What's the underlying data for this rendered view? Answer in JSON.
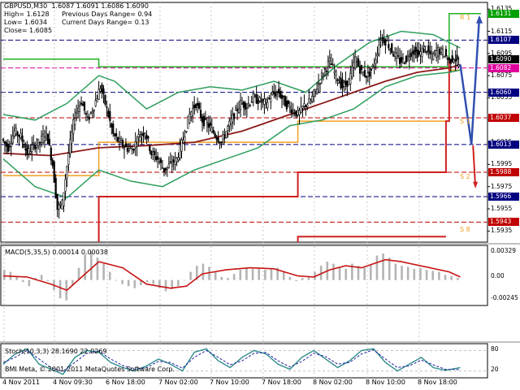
{
  "header": {
    "symbol_line": "GBPUSD,M30  1.6087 1.6091 1.6086 1.6090",
    "high": "High= 1.6128",
    "low": "Low= 1.6034",
    "close": "Close= 1.6085",
    "prev_range": "Previous Days Range= 0.94",
    "cur_range": "Current Days Range= 0.13"
  },
  "macd": {
    "label": "MACD(5,35,5) 0.00014 0.00038",
    "ticks": [
      "0.00329",
      "0.00",
      "-0.00245"
    ]
  },
  "stoch": {
    "label": "Stoch(10,3,3) 28.1690 22.0269",
    "ticks": [
      "80",
      "20"
    ]
  },
  "copyright": "BMI Meta, © 2001-2011 MetaQuotes Software Corp.",
  "price_ticks": [
    "1.6135",
    "1.6115",
    "1.6095",
    "1.6075",
    "1.6055",
    "1.6035",
    "1.6015",
    "1.5995",
    "1.5975",
    "1.5955",
    "1.5935"
  ],
  "price_labels": [
    {
      "text": "1.6131",
      "bg": "#00a000",
      "fg": "#ffffff",
      "price": 1.6131
    },
    {
      "text": "1.6107",
      "bg": "#000080",
      "fg": "#ffffff",
      "price": 1.6107
    },
    {
      "text": "1.6090",
      "bg": "#000000",
      "fg": "#ffffff",
      "price": 1.609
    },
    {
      "text": "1.6082",
      "bg": "#e0009c",
      "fg": "#ffffff",
      "price": 1.6082
    },
    {
      "text": "1.6060",
      "bg": "#000080",
      "fg": "#ffffff",
      "price": 1.606
    },
    {
      "text": "1.6037",
      "bg": "#c00000",
      "fg": "#ffffff",
      "price": 1.6037
    },
    {
      "text": "1.6013",
      "bg": "#000080",
      "fg": "#ffffff",
      "price": 1.6013
    },
    {
      "text": "1.5988",
      "bg": "#c00000",
      "fg": "#ffffff",
      "price": 1.5988
    },
    {
      "text": "1.5966",
      "bg": "#000080",
      "fg": "#ffffff",
      "price": 1.5966
    },
    {
      "text": "1.5943",
      "bg": "#c00000",
      "fg": "#ffffff",
      "price": 1.5943
    }
  ],
  "level_marks": [
    {
      "text": "R 1",
      "price": 1.6128,
      "x": 566,
      "color": "#f0a020"
    },
    {
      "text": "S 1",
      "price": 1.6034,
      "x": 566,
      "color": "#f0a020"
    },
    {
      "text": "S 2",
      "price": 1.5984,
      "x": 566,
      "color": "#f0a020"
    },
    {
      "text": "S 8",
      "price": 1.5937,
      "x": 566,
      "color": "#f0a020"
    }
  ],
  "x_labels": [
    {
      "text": "4 Nov 2011",
      "x": 3
    },
    {
      "text": "4 Nov 09:30",
      "x": 65
    },
    {
      "text": "6 Nov 18:00",
      "x": 130
    },
    {
      "text": "7 Nov 02:00",
      "x": 195
    },
    {
      "text": "7 Nov 10:00",
      "x": 258
    },
    {
      "text": "7 Nov 18:00",
      "x": 322
    },
    {
      "text": "8 Nov 02:00",
      "x": 385
    },
    {
      "text": "8 Nov 10:00",
      "x": 450
    },
    {
      "text": "8 Nov 18:00",
      "x": 514
    }
  ],
  "colors": {
    "candle": "#000000",
    "bb": "#2e9e5e",
    "ma": "#8b1a1a",
    "r1": "#20b020",
    "s1": "#f0a020",
    "s2": "#d02020",
    "proj": "#3050b0",
    "macd_hist": "#b4b4b4",
    "macd_sig": "#c81414",
    "stoch_main": "#2e8b8b",
    "stoch_sig": "#2020a0"
  },
  "chart_data": [
    {
      "type": "candlestick",
      "title": "GBPUSD,M30",
      "ylim": [
        1.5925,
        1.6141
      ],
      "indicators": [
        "Bollinger Bands",
        "Moving Average",
        "Pivot levels"
      ],
      "close_path": [
        [
          0,
          1.6018
        ],
        [
          8,
          1.601
        ],
        [
          16,
          1.6025
        ],
        [
          24,
          1.602
        ],
        [
          32,
          1.6005
        ],
        [
          40,
          1.6012
        ],
        [
          48,
          1.6015
        ],
        [
          56,
          1.6025
        ],
        [
          64,
          1.5995
        ],
        [
          70,
          1.5955
        ],
        [
          76,
          1.596
        ],
        [
          84,
          1.6005
        ],
        [
          92,
          1.604
        ],
        [
          100,
          1.6052
        ],
        [
          108,
          1.6035
        ],
        [
          116,
          1.6048
        ],
        [
          124,
          1.6065
        ],
        [
          132,
          1.6045
        ],
        [
          140,
          1.6022
        ],
        [
          148,
          1.6015
        ],
        [
          156,
          1.601
        ],
        [
          164,
          1.6008
        ],
        [
          172,
          1.602
        ],
        [
          180,
          1.6025
        ],
        [
          188,
          1.6005
        ],
        [
          196,
          1.6
        ],
        [
          204,
          1.599
        ],
        [
          212,
          1.5995
        ],
        [
          220,
          1.6
        ],
        [
          228,
          1.6018
        ],
        [
          236,
          1.604
        ],
        [
          244,
          1.605
        ],
        [
          252,
          1.6035
        ],
        [
          260,
          1.603
        ],
        [
          268,
          1.6022
        ],
        [
          276,
          1.6015
        ],
        [
          284,
          1.6028
        ],
        [
          292,
          1.604
        ],
        [
          300,
          1.605
        ],
        [
          308,
          1.6048
        ],
        [
          316,
          1.6055
        ],
        [
          324,
          1.6052
        ],
        [
          332,
          1.605
        ],
        [
          340,
          1.6058
        ],
        [
          348,
          1.606
        ],
        [
          356,
          1.605
        ],
        [
          364,
          1.6045
        ],
        [
          372,
          1.604
        ],
        [
          380,
          1.6048
        ],
        [
          388,
          1.6052
        ],
        [
          396,
          1.6065
        ],
        [
          404,
          1.6078
        ],
        [
          412,
          1.6088
        ],
        [
          420,
          1.6075
        ],
        [
          428,
          1.6065
        ],
        [
          436,
          1.607
        ],
        [
          444,
          1.609
        ],
        [
          452,
          1.6078
        ],
        [
          460,
          1.6075
        ],
        [
          468,
          1.6085
        ],
        [
          476,
          1.611
        ],
        [
          484,
          1.6105
        ],
        [
          492,
          1.6095
        ],
        [
          500,
          1.6088
        ],
        [
          508,
          1.609
        ],
        [
          516,
          1.6098
        ],
        [
          524,
          1.6094
        ],
        [
          532,
          1.61
        ],
        [
          540,
          1.6092
        ],
        [
          548,
          1.6098
        ],
        [
          556,
          1.6095
        ],
        [
          562,
          1.6088
        ],
        [
          568,
          1.6092
        ],
        [
          574,
          1.6085
        ]
      ],
      "ma_path": [
        [
          0,
          1.6005
        ],
        [
          60,
          1.6003
        ],
        [
          120,
          1.601
        ],
        [
          180,
          1.6012
        ],
        [
          240,
          1.6015
        ],
        [
          300,
          1.6025
        ],
        [
          360,
          1.604
        ],
        [
          400,
          1.605
        ],
        [
          440,
          1.606
        ],
        [
          480,
          1.607
        ],
        [
          520,
          1.6078
        ],
        [
          560,
          1.6082
        ],
        [
          574,
          1.6085
        ]
      ],
      "bb_upper": [
        [
          0,
          1.604
        ],
        [
          40,
          1.6035
        ],
        [
          80,
          1.605
        ],
        [
          120,
          1.6075
        ],
        [
          140,
          1.607
        ],
        [
          180,
          1.6045
        ],
        [
          220,
          1.606
        ],
        [
          260,
          1.6065
        ],
        [
          300,
          1.6062
        ],
        [
          340,
          1.607
        ],
        [
          380,
          1.606
        ],
        [
          420,
          1.6085
        ],
        [
          460,
          1.6105
        ],
        [
          500,
          1.6115
        ],
        [
          540,
          1.6112
        ],
        [
          574,
          1.61
        ]
      ],
      "bb_lower": [
        [
          0,
          1.6
        ],
        [
          40,
          1.5975
        ],
        [
          80,
          1.5965
        ],
        [
          120,
          1.599
        ],
        [
          160,
          1.598
        ],
        [
          200,
          1.5975
        ],
        [
          240,
          1.599
        ],
        [
          280,
          1.6
        ],
        [
          320,
          1.601
        ],
        [
          360,
          1.603
        ],
        [
          400,
          1.6035
        ],
        [
          440,
          1.6045
        ],
        [
          480,
          1.6065
        ],
        [
          520,
          1.6075
        ],
        [
          560,
          1.6078
        ],
        [
          574,
          1.608
        ]
      ],
      "pivot_r1": [
        [
          0,
          1.609
        ],
        [
          120,
          1.609
        ],
        [
          120,
          1.6083
        ],
        [
          560,
          1.6083
        ],
        [
          560,
          1.6131
        ],
        [
          600,
          1.6131
        ]
      ],
      "pivot_s1": [
        [
          0,
          1.5985
        ],
        [
          120,
          1.5985
        ],
        [
          120,
          1.6015
        ],
        [
          370,
          1.6015
        ],
        [
          370,
          1.6034
        ],
        [
          560,
          1.6034
        ],
        [
          560,
          1.608
        ],
        [
          574,
          1.608
        ]
      ],
      "pivot_s2": [
        [
          120,
          1.5925
        ],
        [
          120,
          1.5966
        ],
        [
          370,
          1.5966
        ],
        [
          370,
          1.5988
        ],
        [
          556,
          1.5988
        ],
        [
          556,
          1.6034
        ],
        [
          560,
          1.6034
        ],
        [
          560,
          1.609
        ]
      ],
      "pivot_s3": [
        [
          370,
          1.5925
        ],
        [
          370,
          1.593
        ],
        [
          556,
          1.593
        ]
      ],
      "projection": [
        [
          574,
          1.6085
        ],
        [
          588,
          1.6013
        ],
        [
          598,
          1.6128
        ]
      ],
      "projection_red": [
        [
          590,
          1.6012
        ],
        [
          593,
          1.5975
        ]
      ]
    },
    {
      "type": "bar",
      "title": "MACD(5,35,5)",
      "ylim": [
        -0.0025,
        0.0034
      ],
      "histogram": [
        0.001,
        0.0008,
        0.0003,
        -0.0002,
        -0.0006,
        0.0002,
        0.0005,
        -0.0001,
        -0.001,
        -0.0018,
        -0.002,
        -0.0005,
        0.0012,
        0.0025,
        0.0028,
        0.0022,
        0.0016,
        0.0008,
        0.0,
        -0.0004,
        -0.0006,
        -0.0008,
        -0.0005,
        -0.0002,
        -0.0004,
        -0.0008,
        -0.0011,
        -0.0009,
        -0.0006,
        0.0,
        0.0008,
        0.0014,
        0.0016,
        0.0013,
        0.0008,
        0.0003,
        0.0002,
        0.0006,
        0.001,
        0.0012,
        0.0011,
        0.0012,
        0.001,
        0.0011,
        0.0012,
        0.0008,
        0.0003,
        -0.0001,
        0.0002,
        0.0004,
        0.0008,
        0.0014,
        0.0018,
        0.0016,
        0.0012,
        0.0011,
        0.0016,
        0.0014,
        0.0012,
        0.0015,
        0.0024,
        0.0026,
        0.0022,
        0.0016,
        0.0014,
        0.0013,
        0.0011,
        0.0012,
        0.001,
        0.0009,
        0.0008,
        0.0005,
        0.0004,
        0.0002
      ],
      "signal": [
        [
          0,
          0.0004
        ],
        [
          30,
          0.0003
        ],
        [
          60,
          -0.0004
        ],
        [
          80,
          -0.001
        ],
        [
          100,
          0.0004
        ],
        [
          120,
          0.0018
        ],
        [
          150,
          0.0012
        ],
        [
          180,
          -0.0004
        ],
        [
          210,
          -0.0008
        ],
        [
          230,
          -0.0006
        ],
        [
          250,
          0.0006
        ],
        [
          280,
          0.001
        ],
        [
          310,
          0.0012
        ],
        [
          340,
          0.0011
        ],
        [
          370,
          0.0004
        ],
        [
          390,
          0.0003
        ],
        [
          410,
          0.001
        ],
        [
          430,
          0.0014
        ],
        [
          450,
          0.0012
        ],
        [
          480,
          0.002
        ],
        [
          500,
          0.0018
        ],
        [
          530,
          0.0013
        ],
        [
          560,
          0.0008
        ],
        [
          574,
          0.0003
        ]
      ]
    },
    {
      "type": "line",
      "title": "Stoch(10,3,3)",
      "ylim": [
        0,
        100
      ],
      "main": [
        [
          0,
          40
        ],
        [
          15,
          70
        ],
        [
          30,
          85
        ],
        [
          45,
          40
        ],
        [
          60,
          25
        ],
        [
          75,
          10
        ],
        [
          90,
          60
        ],
        [
          105,
          80
        ],
        [
          120,
          75
        ],
        [
          135,
          45
        ],
        [
          150,
          30
        ],
        [
          165,
          20
        ],
        [
          180,
          35
        ],
        [
          195,
          55
        ],
        [
          210,
          40
        ],
        [
          225,
          20
        ],
        [
          240,
          75
        ],
        [
          255,
          85
        ],
        [
          270,
          50
        ],
        [
          285,
          30
        ],
        [
          300,
          60
        ],
        [
          315,
          80
        ],
        [
          330,
          70
        ],
        [
          345,
          40
        ],
        [
          360,
          25
        ],
        [
          375,
          60
        ],
        [
          390,
          80
        ],
        [
          405,
          55
        ],
        [
          420,
          30
        ],
        [
          435,
          50
        ],
        [
          450,
          80
        ],
        [
          465,
          85
        ],
        [
          480,
          45
        ],
        [
          495,
          20
        ],
        [
          510,
          40
        ],
        [
          525,
          60
        ],
        [
          540,
          30
        ],
        [
          555,
          22
        ],
        [
          574,
          30
        ]
      ],
      "signal": [
        [
          0,
          45
        ],
        [
          15,
          60
        ],
        [
          30,
          80
        ],
        [
          45,
          55
        ],
        [
          60,
          30
        ],
        [
          75,
          18
        ],
        [
          90,
          45
        ],
        [
          105,
          72
        ],
        [
          120,
          78
        ],
        [
          135,
          55
        ],
        [
          150,
          36
        ],
        [
          165,
          25
        ],
        [
          180,
          30
        ],
        [
          195,
          48
        ],
        [
          210,
          45
        ],
        [
          225,
          28
        ],
        [
          240,
          60
        ],
        [
          255,
          80
        ],
        [
          270,
          60
        ],
        [
          285,
          38
        ],
        [
          300,
          50
        ],
        [
          315,
          72
        ],
        [
          330,
          74
        ],
        [
          345,
          50
        ],
        [
          360,
          32
        ],
        [
          375,
          48
        ],
        [
          390,
          72
        ],
        [
          405,
          62
        ],
        [
          420,
          40
        ],
        [
          435,
          45
        ],
        [
          450,
          70
        ],
        [
          465,
          82
        ],
        [
          480,
          55
        ],
        [
          495,
          30
        ],
        [
          510,
          35
        ],
        [
          525,
          52
        ],
        [
          540,
          38
        ],
        [
          555,
          25
        ],
        [
          574,
          24
        ]
      ]
    }
  ]
}
